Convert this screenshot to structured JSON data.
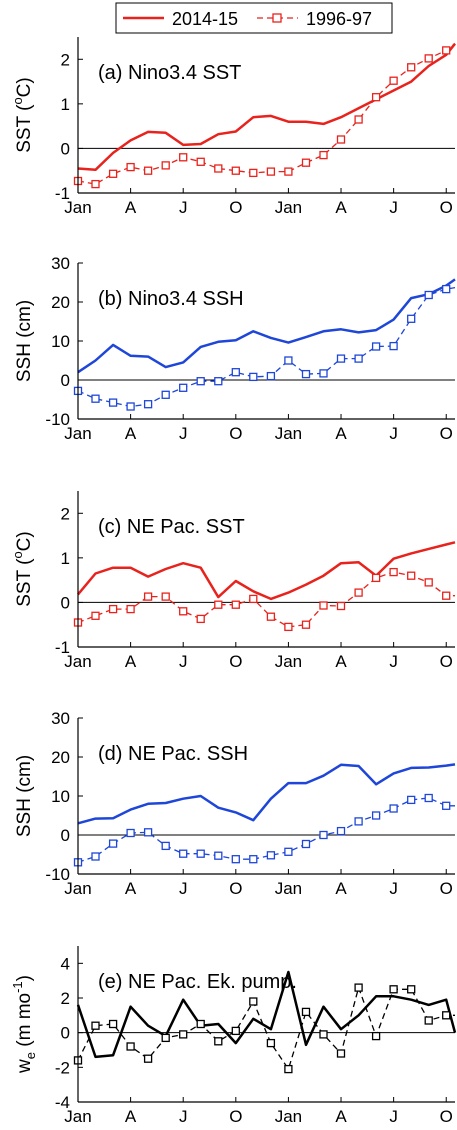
{
  "legend": {
    "entries": [
      {
        "label": "2014-15",
        "color": "#e8221c",
        "style": "solid"
      },
      {
        "label": "1996-97",
        "color": "#e8221c",
        "style": "dashed-square"
      }
    ]
  },
  "x_tick_labels": [
    "Jan",
    "A",
    "J",
    "O",
    "Jan",
    "A",
    "J",
    "O"
  ],
  "chart_data": [
    {
      "type": "line",
      "title": "(a) Nino3.4 SST",
      "ylabel": "SST (°C)",
      "ylabel_main": "SST (",
      "ylabel_sup": "o",
      "ylabel_end": "C)",
      "ylim": [
        -1,
        2.5
      ],
      "yticks": [
        -1,
        0,
        1,
        2
      ],
      "xlim": [
        0,
        21.5
      ],
      "grid": false,
      "color": "#e8221c",
      "series": [
        {
          "name": "2014-15",
          "style": "solid",
          "x": [
            0,
            1,
            2,
            3,
            4,
            5,
            6,
            7,
            8,
            9,
            10,
            11,
            12,
            13,
            14,
            15,
            16,
            17,
            18,
            19,
            20,
            21,
            21.5
          ],
          "values": [
            -0.45,
            -0.48,
            -0.1,
            0.18,
            0.37,
            0.35,
            0.08,
            0.1,
            0.32,
            0.38,
            0.7,
            0.73,
            0.6,
            0.6,
            0.55,
            0.7,
            0.9,
            1.1,
            1.3,
            1.5,
            1.85,
            2.1,
            2.35
          ]
        },
        {
          "name": "1996-97",
          "style": "dashed-square",
          "x": [
            0,
            1,
            2,
            3,
            4,
            5,
            6,
            7,
            8,
            9,
            10,
            11,
            12,
            13,
            14,
            15,
            16,
            17,
            18,
            19,
            20,
            21,
            21.5
          ],
          "values": [
            -0.73,
            -0.8,
            -0.57,
            -0.42,
            -0.5,
            -0.38,
            -0.2,
            -0.3,
            -0.45,
            -0.5,
            -0.55,
            -0.52,
            -0.52,
            -0.32,
            -0.15,
            0.2,
            0.65,
            1.15,
            1.52,
            1.82,
            2.02,
            2.2,
            2.35
          ]
        }
      ]
    },
    {
      "type": "line",
      "title": "(b) Nino3.4 SSH",
      "ylabel": "SSH (cm)",
      "ylim": [
        -10,
        30
      ],
      "yticks": [
        -10,
        0,
        10,
        20,
        30
      ],
      "xlim": [
        0,
        21.5
      ],
      "grid": false,
      "color": "#1e46d8",
      "series": [
        {
          "name": "2014-15",
          "style": "solid",
          "x": [
            0,
            1,
            2,
            3,
            4,
            5,
            6,
            7,
            8,
            9,
            10,
            11,
            12,
            13,
            14,
            15,
            16,
            17,
            18,
            19,
            20,
            21,
            21.5
          ],
          "values": [
            2,
            5,
            9,
            6.2,
            6,
            3.3,
            4.5,
            8.5,
            9.8,
            10.2,
            12.5,
            10.8,
            9.6,
            11,
            12.5,
            13,
            12.2,
            12.8,
            15.5,
            21,
            22,
            24.2,
            25.8
          ]
        },
        {
          "name": "1996-97",
          "style": "dashed-square",
          "x": [
            0,
            1,
            2,
            3,
            4,
            5,
            6,
            7,
            8,
            9,
            10,
            11,
            12,
            13,
            14,
            15,
            16,
            17,
            18,
            19,
            20,
            21,
            21.5
          ],
          "values": [
            -2.8,
            -4.8,
            -5.8,
            -6.8,
            -6.2,
            -3.8,
            -2,
            -0.3,
            -0.3,
            2,
            0.8,
            1,
            5,
            1.5,
            1.7,
            5.5,
            5.5,
            8.6,
            8.7,
            15.7,
            21.8,
            23.3,
            23.7
          ]
        }
      ]
    },
    {
      "type": "line",
      "title": "(c) NE Pac. SST",
      "ylabel": "SST (°C)",
      "ylabel_main": "SST (",
      "ylabel_sup": "o",
      "ylabel_end": "C)",
      "ylim": [
        -1,
        2.5
      ],
      "yticks": [
        -1,
        0,
        1,
        2
      ],
      "xlim": [
        0,
        21.5
      ],
      "grid": false,
      "color": "#e8221c",
      "series": [
        {
          "name": "2014-15",
          "style": "solid",
          "x": [
            0,
            1,
            2,
            3,
            4,
            5,
            6,
            7,
            8,
            9,
            10,
            11,
            12,
            13,
            14,
            15,
            16,
            17,
            18,
            19,
            20,
            21,
            21.5
          ],
          "values": [
            0.18,
            0.65,
            0.78,
            0.78,
            0.58,
            0.75,
            0.88,
            0.78,
            0.12,
            0.48,
            0.25,
            0.08,
            0.22,
            0.4,
            0.6,
            0.88,
            0.9,
            0.6,
            0.98,
            1.1,
            1.2,
            1.3,
            1.35
          ]
        },
        {
          "name": "1996-97",
          "style": "dashed-square",
          "x": [
            0,
            1,
            2,
            3,
            4,
            5,
            6,
            7,
            8,
            9,
            10,
            11,
            12,
            13,
            14,
            15,
            16,
            17,
            18,
            19,
            20,
            21,
            21.5
          ],
          "values": [
            -0.45,
            -0.3,
            -0.15,
            -0.15,
            0.13,
            0.13,
            -0.2,
            -0.37,
            -0.05,
            -0.05,
            0.08,
            -0.32,
            -0.55,
            -0.5,
            -0.07,
            -0.08,
            0.22,
            0.55,
            0.68,
            0.6,
            0.45,
            0.15,
            0.15
          ]
        }
      ]
    },
    {
      "type": "line",
      "title": "(d) NE Pac. SSH",
      "ylabel": "SSH (cm)",
      "ylim": [
        -10,
        30
      ],
      "yticks": [
        -10,
        0,
        10,
        20,
        30
      ],
      "xlim": [
        0,
        21.5
      ],
      "grid": false,
      "color": "#1e46d8",
      "series": [
        {
          "name": "2014-15",
          "style": "solid",
          "x": [
            0,
            1,
            2,
            3,
            4,
            5,
            6,
            7,
            8,
            9,
            10,
            11,
            12,
            13,
            14,
            15,
            16,
            17,
            18,
            19,
            20,
            21,
            21.5
          ],
          "values": [
            3,
            4.2,
            4.3,
            6.5,
            8,
            8.2,
            9.3,
            10,
            7,
            5.8,
            3.8,
            9.3,
            13.3,
            13.3,
            15.2,
            18,
            17.7,
            13,
            15.8,
            17.2,
            17.3,
            17.8,
            18.1
          ]
        },
        {
          "name": "1996-97",
          "style": "dashed-square",
          "x": [
            0,
            1,
            2,
            3,
            4,
            5,
            6,
            7,
            8,
            9,
            10,
            11,
            12,
            13,
            14,
            15,
            16,
            17,
            18,
            19,
            20,
            21,
            21.5
          ],
          "values": [
            -7,
            -5.5,
            -2.2,
            0.5,
            0.7,
            -2.8,
            -4.8,
            -4.8,
            -5.3,
            -6.2,
            -6.2,
            -5.2,
            -4.3,
            -2.3,
            0,
            1,
            3.5,
            5,
            6.8,
            9,
            9.5,
            7.5,
            7.5
          ]
        }
      ]
    },
    {
      "type": "line",
      "title": "(e) NE Pac. Ek. pump.",
      "ylabel": "we (m mo-1)",
      "ylabel_main": "w",
      "ylabel_sub": "e",
      "ylabel_rest": " (m mo",
      "ylabel_sup": "-1",
      "ylabel_end": ")",
      "ylim": [
        -4,
        5
      ],
      "yticks": [
        -4,
        -2,
        0,
        2,
        4
      ],
      "xlim": [
        0,
        21.5
      ],
      "grid": false,
      "color": "#000000",
      "series": [
        {
          "name": "2014-15",
          "style": "solid",
          "x": [
            0,
            1,
            2,
            3,
            4,
            5,
            6,
            7,
            8,
            9,
            10,
            11,
            12,
            13,
            14,
            15,
            16,
            17,
            18,
            19,
            20,
            21,
            21.5
          ],
          "values": [
            1.6,
            -1.4,
            -1.3,
            1.5,
            0.4,
            -0.2,
            1.9,
            0.4,
            0.5,
            -0.6,
            0.8,
            0.2,
            3.5,
            -0.7,
            1.5,
            0.2,
            1.0,
            2.1,
            2.1,
            1.9,
            1.6,
            1.9,
            0.0
          ]
        },
        {
          "name": "1996-97",
          "style": "dashed-square",
          "x": [
            0,
            1,
            2,
            3,
            4,
            5,
            6,
            7,
            8,
            9,
            10,
            11,
            12,
            13,
            14,
            15,
            16,
            17,
            18,
            19,
            20,
            21,
            21.5
          ],
          "values": [
            -1.6,
            0.4,
            0.5,
            -0.8,
            -1.5,
            -0.3,
            -0.1,
            0.5,
            -0.5,
            0.1,
            1.8,
            -0.6,
            -2.1,
            1.2,
            -0.1,
            -1.2,
            2.6,
            -0.2,
            2.5,
            2.5,
            0.7,
            1.0,
            1.0
          ]
        }
      ]
    }
  ]
}
